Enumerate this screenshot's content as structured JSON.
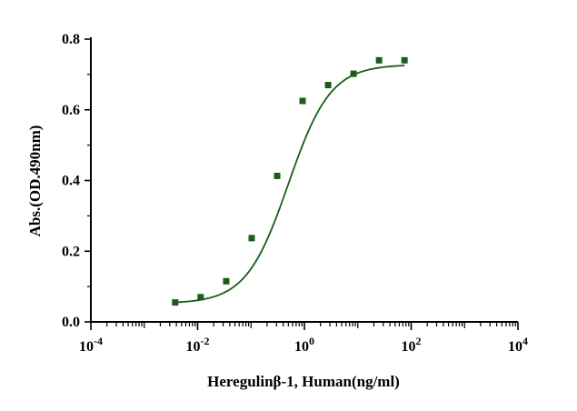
{
  "chart_data": {
    "type": "scatter",
    "title": "",
    "xlabel": "Heregulinβ-1, Human(ng/ml)",
    "ylabel": "Abs.(OD.490nm)",
    "x_scale": "log",
    "xlim": [
      0.0001,
      10000
    ],
    "ylim": [
      0,
      0.8
    ],
    "x_ticks": [
      {
        "base": "10",
        "exp": "-4"
      },
      {
        "base": "10",
        "exp": "-2"
      },
      {
        "base": "10",
        "exp": "0"
      },
      {
        "base": "10",
        "exp": "2"
      },
      {
        "base": "10",
        "exp": "4"
      }
    ],
    "y_ticks": [
      "0.0",
      "0.2",
      "0.4",
      "0.6",
      "0.8"
    ],
    "grid": false,
    "legend": "none",
    "color": "#1a5c1a",
    "series": [
      {
        "x": [
          0.0038,
          0.0114,
          0.0343,
          0.103,
          0.309,
          0.926,
          2.78,
          8.33,
          25.0,
          75.0
        ],
        "y": [
          0.055,
          0.07,
          0.115,
          0.237,
          0.413,
          0.625,
          0.67,
          0.702,
          0.74,
          0.74
        ],
        "fit": "4PL"
      }
    ]
  }
}
